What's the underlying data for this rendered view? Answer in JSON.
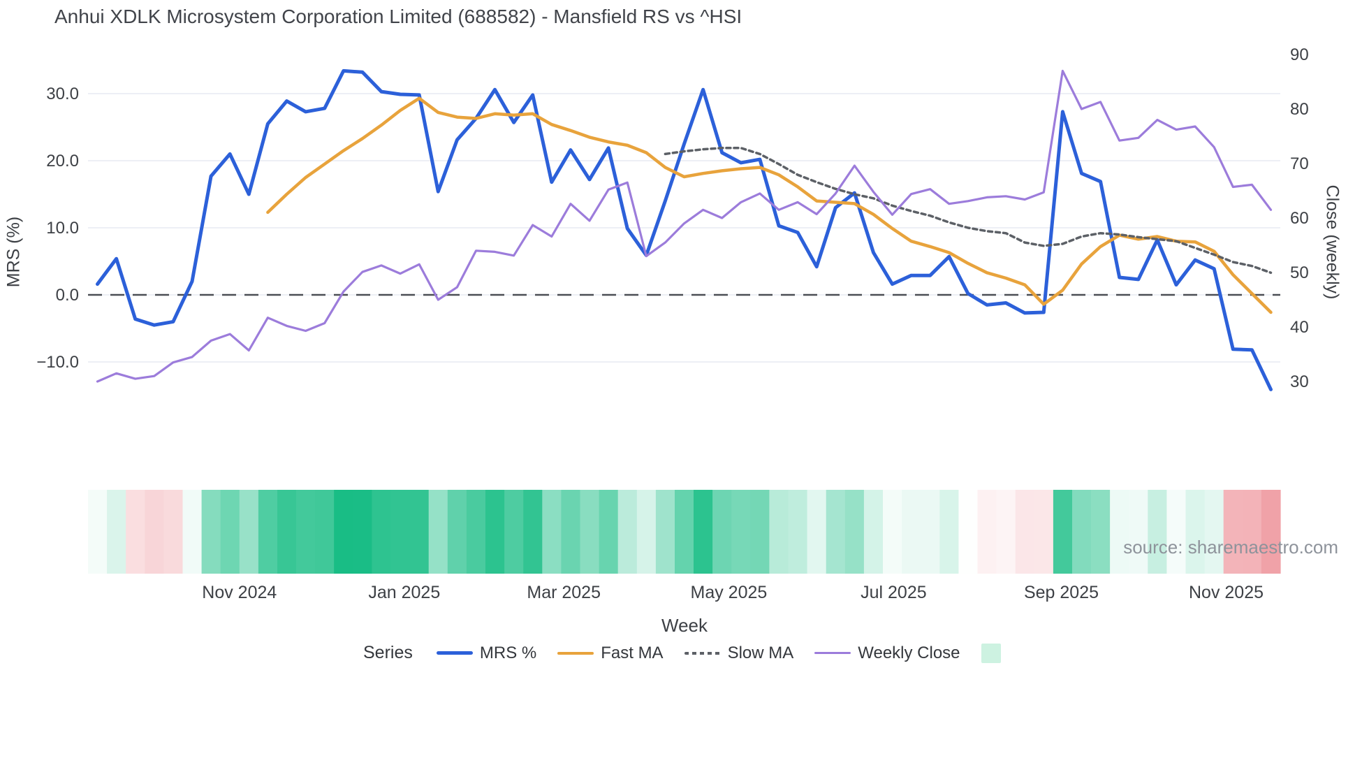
{
  "title": "Anhui XDLK Microsystem Corporation Limited (688582) - Mansfield RS vs ^HSI",
  "source_note": "source: sharemaestro.com",
  "colors": {
    "mrs": "#2c60d9",
    "fast_ma": "#e8a33c",
    "slow_ma": "#5c6066",
    "weekly_close": "#9c7cdb",
    "zero_line": "#4b4e54",
    "gridline": "#e7eaf2",
    "tick_text": "#3d4045",
    "heatmap_positive": "#19bd85",
    "heatmap_negative": "#f0a2a8",
    "legend_heatmap_swatch": "#cdf2e1"
  },
  "legend": {
    "title": "Series",
    "items": [
      {
        "label": "MRS %",
        "swatch": "line",
        "color": "#2c60d9",
        "thick": 5
      },
      {
        "label": "Fast MA",
        "swatch": "line",
        "color": "#e8a33c",
        "thick": 4
      },
      {
        "label": "Slow MA",
        "swatch": "dots",
        "color": "#5c6066",
        "thick": 4
      },
      {
        "label": "Weekly Close",
        "swatch": "line",
        "color": "#9c7cdb",
        "thick": 3
      },
      {
        "label": "",
        "swatch": "square",
        "color": "#cdf2e1",
        "thick": 0
      }
    ]
  },
  "chart_data": {
    "type": "line",
    "title": "Anhui XDLK Microsystem Corporation Limited (688582) - Mansfield RS vs ^HSI",
    "xlabel": "Week",
    "weeks": 63,
    "x_ticks": [
      {
        "label": "Nov 2024",
        "week": 8.0
      },
      {
        "label": "Jan 2025",
        "week": 16.71
      },
      {
        "label": "Mar 2025",
        "week": 25.14
      },
      {
        "label": "May 2025",
        "week": 33.86
      },
      {
        "label": "Jul 2025",
        "week": 42.57
      },
      {
        "label": "Sep 2025",
        "week": 51.43
      },
      {
        "label": "Nov 2025",
        "week": 60.14
      }
    ],
    "y_left": {
      "label": "MRS (%)",
      "tick_values": [
        30,
        20,
        10,
        0,
        -10
      ],
      "tick_labels": [
        "30.0",
        "20.0",
        "10.0",
        "0.0",
        "−10.0"
      ],
      "zero_dashed_line": 0
    },
    "y_right": {
      "label": "Close (weekly)",
      "tick_values": [
        90,
        80,
        70,
        60,
        50,
        40,
        30
      ],
      "tick_labels": [
        "90",
        "80",
        "70",
        "60",
        "50",
        "40",
        "30"
      ]
    },
    "series": [
      {
        "name": "MRS %",
        "axis": "left",
        "color": "#2c60d9",
        "width": 5,
        "dash": null,
        "values": [
          1.6,
          5.4,
          -3.6,
          -4.5,
          -4.0,
          2.0,
          17.7,
          21.0,
          15.0,
          25.5,
          28.9,
          27.3,
          27.8,
          33.4,
          33.2,
          30.3,
          29.9,
          29.8,
          15.4,
          23.1,
          26.3,
          30.6,
          25.7,
          29.8,
          16.8,
          21.6,
          17.2,
          21.9,
          9.9,
          5.9,
          14.0,
          22.5,
          30.6,
          21.2,
          19.7,
          20.2,
          10.3,
          9.3,
          4.2,
          13.0,
          15.2,
          6.3,
          1.6,
          2.9,
          2.9,
          5.7,
          0.2,
          -1.5,
          -1.2,
          -2.7,
          -2.6,
          27.3,
          18.1,
          16.9,
          2.6,
          2.3,
          8.2,
          1.5,
          5.2,
          3.9,
          -8.1,
          -8.2,
          -14.1
        ]
      },
      {
        "name": "Fast MA",
        "axis": "left",
        "color": "#e8a33c",
        "width": 4.5,
        "dash": null,
        "values": [
          null,
          null,
          null,
          null,
          null,
          null,
          null,
          null,
          null,
          12.3,
          15.0,
          17.5,
          19.5,
          21.5,
          23.3,
          25.3,
          27.5,
          29.3,
          27.2,
          26.5,
          26.3,
          27.0,
          26.8,
          27.0,
          25.4,
          24.5,
          23.5,
          22.8,
          22.3,
          21.2,
          19.0,
          17.6,
          18.1,
          18.5,
          18.8,
          19.0,
          17.9,
          16.1,
          14.0,
          13.8,
          13.6,
          12.0,
          9.9,
          8.0,
          7.2,
          6.3,
          4.7,
          3.3,
          2.5,
          1.5,
          -1.4,
          0.7,
          4.6,
          7.2,
          8.9,
          8.3,
          8.7,
          8.0,
          7.9,
          6.5,
          3.0,
          0.2,
          -2.6
        ]
      },
      {
        "name": "Slow MA",
        "axis": "left",
        "color": "#5c6066",
        "width": 3.5,
        "dash": "6 5",
        "values": [
          null,
          null,
          null,
          null,
          null,
          null,
          null,
          null,
          null,
          null,
          null,
          null,
          null,
          null,
          null,
          null,
          null,
          null,
          null,
          null,
          null,
          null,
          null,
          null,
          null,
          null,
          null,
          null,
          null,
          null,
          21.0,
          21.4,
          21.7,
          21.9,
          21.9,
          21.0,
          19.5,
          17.9,
          16.8,
          15.8,
          15.0,
          14.4,
          13.3,
          12.5,
          11.8,
          10.8,
          10.0,
          9.5,
          9.2,
          7.8,
          7.3,
          7.6,
          8.7,
          9.2,
          9.0,
          8.6,
          8.3,
          8.0,
          7.0,
          6.0,
          4.9,
          4.3,
          3.3
        ]
      },
      {
        "name": "Weekly Close",
        "axis": "right",
        "color": "#9c7cdb",
        "width": 3.2,
        "dash": null,
        "values": [
          30,
          31.5,
          30.5,
          31,
          33.5,
          34.5,
          37.5,
          38.7,
          35.7,
          41.7,
          40.2,
          39.3,
          40.7,
          46.5,
          50.1,
          51.3,
          49.8,
          51.5,
          45,
          47.3,
          54,
          53.8,
          53.1,
          58.7,
          56.6,
          62.6,
          59.5,
          65.2,
          66.5,
          53,
          55.5,
          59,
          61.5,
          60,
          62.9,
          64.5,
          61.5,
          62.9,
          60.7,
          64.5,
          69.6,
          64.8,
          60.6,
          64.4,
          65.3,
          62.6,
          63.1,
          63.8,
          64.0,
          63.4,
          64.7,
          87,
          80,
          81.3,
          74.2,
          74.7,
          78,
          76.2,
          76.8,
          73,
          65.7,
          66.1,
          61.5
        ]
      }
    ],
    "heatmap": {
      "name": "MRS heat strip",
      "positive_color": "#19bd85",
      "positive_max": 33.4,
      "negative_color": "#f0a2a8",
      "negative_max": 10,
      "values": [
        1.6,
        5.4,
        -3.6,
        -4.5,
        -4.0,
        2.0,
        17.7,
        21.0,
        15.0,
        25.5,
        28.9,
        27.3,
        27.8,
        33.4,
        33.2,
        30.3,
        29.9,
        29.8,
        15.4,
        23.1,
        26.3,
        30.6,
        25.7,
        29.8,
        16.8,
        21.6,
        17.2,
        21.9,
        9.9,
        5.9,
        14.0,
        22.5,
        30.6,
        21.2,
        19.7,
        20.2,
        10.3,
        9.3,
        4.2,
        13.0,
        15.2,
        6.3,
        1.6,
        2.9,
        2.9,
        5.7,
        0.2,
        -1.5,
        -1.2,
        -2.7,
        -2.6,
        27.3,
        18.1,
        16.9,
        2.6,
        2.3,
        8.2,
        1.5,
        5.2,
        3.9,
        -8.1,
        -8.2,
        -14.1
      ]
    },
    "legend_position": "bottom",
    "grid": "horizontal-only"
  }
}
